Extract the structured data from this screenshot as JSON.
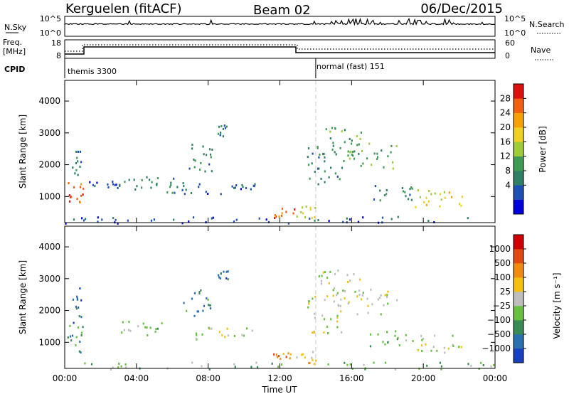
{
  "header": {
    "title": "Kerguelen (fitACF)",
    "beam": "Beam 02",
    "date": "06/Dec/2015"
  },
  "top_panels": {
    "nsky_label": "N.Sky",
    "nsky_ticks": [
      "10^5",
      "10^0"
    ],
    "nsearch_label": "N.Search",
    "nsearch_ticks": [
      "10^5",
      "10^0"
    ],
    "freq_label_line1": "Freq.",
    "freq_label_line2": "[MHz]",
    "freq_ticks": [
      "18",
      "8"
    ],
    "nave_label": "Nave",
    "nave_ticks": [
      "60",
      "0"
    ],
    "cpid_label": "CPID",
    "cpid_segments": [
      {
        "label": "themis 3300",
        "start_hour": 0
      },
      {
        "label": "normal (fast) 151",
        "start_hour": 14
      }
    ]
  },
  "x_axis": {
    "label": "Time UT",
    "ticks": [
      "00:00",
      "04:00",
      "08:00",
      "12:00",
      "16:00",
      "20:00",
      "00:00"
    ]
  },
  "y_axis": {
    "label": "Slant Range [km]",
    "ticks": [
      "1000",
      "2000",
      "3000",
      "4000"
    ]
  },
  "power_colorbar": {
    "label": "Power [dB]",
    "ticks": [
      "28",
      "24",
      "20",
      "16",
      "12",
      "8",
      "4"
    ],
    "colors": [
      "#0000dd",
      "#1e4fb5",
      "#2f7f66",
      "#3f9a55",
      "#9ccc3a",
      "#f0d020",
      "#f5a000",
      "#f06010",
      "#dd1010"
    ]
  },
  "velocity_colorbar": {
    "label": "Velocity [m s⁻¹]",
    "ticks": [
      "1000",
      "500",
      "100",
      "25",
      "−25",
      "−100",
      "−500",
      "−1000"
    ],
    "colors": [
      "#1840c0",
      "#2a70b0",
      "#3a8a55",
      "#68c040",
      "#bebebe",
      "#f5c010",
      "#f08a10",
      "#e04a10",
      "#d00000"
    ]
  },
  "chart_data": {
    "type": "heatmap",
    "title": "Kerguelen (fitACF)",
    "subtitle": "Beam 02",
    "xlabel": "Time UT",
    "ylabel": "Slant Range [km]",
    "xlim": [
      0,
      24
    ],
    "ylim": [
      180,
      4650
    ],
    "time_switch_hour": 14,
    "power_blobs": [
      {
        "t0": 0.0,
        "t1": 1.0,
        "r0": 700,
        "r1": 1550,
        "level": 7
      },
      {
        "t0": 0.4,
        "t1": 0.9,
        "r0": 1600,
        "r1": 2800,
        "level": 2
      },
      {
        "t0": 1.2,
        "t1": 3.0,
        "r0": 1250,
        "r1": 1500,
        "level": 1
      },
      {
        "t0": 3.0,
        "t1": 5.6,
        "r0": 1250,
        "r1": 1700,
        "level": 2
      },
      {
        "t0": 5.5,
        "t1": 7.0,
        "r0": 1100,
        "r1": 1600,
        "level": 2
      },
      {
        "t0": 6.6,
        "t1": 8.2,
        "r0": 1800,
        "r1": 2700,
        "level": 2
      },
      {
        "t0": 8.5,
        "t1": 9.1,
        "r0": 2900,
        "r1": 3300,
        "level": 2
      },
      {
        "t0": 7.0,
        "t1": 10.6,
        "r0": 1100,
        "r1": 1500,
        "level": 1
      },
      {
        "t0": 11.6,
        "t1": 12.8,
        "r0": 350,
        "r1": 700,
        "level": 7
      },
      {
        "t0": 12.9,
        "t1": 14.0,
        "r0": 350,
        "r1": 750,
        "level": 5
      },
      {
        "t0": 13.5,
        "t1": 15.5,
        "r0": 1300,
        "r1": 2600,
        "level": 2
      },
      {
        "t0": 14.0,
        "t1": 16.5,
        "r0": 2200,
        "r1": 3300,
        "level": 3
      },
      {
        "t0": 15.5,
        "t1": 18.5,
        "r0": 1900,
        "r1": 2700,
        "level": 3
      },
      {
        "t0": 17.0,
        "t1": 19.5,
        "r0": 900,
        "r1": 1400,
        "level": 2
      },
      {
        "t0": 19.5,
        "t1": 22.3,
        "r0": 700,
        "r1": 1300,
        "level": 5
      },
      {
        "t0": 0.0,
        "t1": 24.0,
        "r0": 180,
        "r1": 400,
        "level": 1
      }
    ],
    "velocity_blobs": [
      {
        "t0": 0.0,
        "t1": 1.0,
        "r0": 700,
        "r1": 1550,
        "level": 2
      },
      {
        "t0": 0.4,
        "t1": 0.9,
        "r0": 1600,
        "r1": 2800,
        "level": 1
      },
      {
        "t0": 3.0,
        "t1": 5.6,
        "r0": 1250,
        "r1": 1700,
        "level": 3
      },
      {
        "t0": 6.6,
        "t1": 8.2,
        "r0": 1800,
        "r1": 2700,
        "level": 2
      },
      {
        "t0": 8.5,
        "t1": 9.1,
        "r0": 2900,
        "r1": 3300,
        "level": 1
      },
      {
        "t0": 7.0,
        "t1": 10.6,
        "r0": 1100,
        "r1": 1500,
        "level": 4
      },
      {
        "t0": 11.6,
        "t1": 12.8,
        "r0": 500,
        "r1": 750,
        "level": 6
      },
      {
        "t0": 12.9,
        "t1": 14.0,
        "r0": 350,
        "r1": 750,
        "level": 5
      },
      {
        "t0": 13.5,
        "t1": 15.5,
        "r0": 1300,
        "r1": 2600,
        "level": 4
      },
      {
        "t0": 14.0,
        "t1": 16.5,
        "r0": 2200,
        "r1": 3300,
        "level": 4
      },
      {
        "t0": 15.5,
        "t1": 18.5,
        "r0": 1900,
        "r1": 2700,
        "level": 4
      },
      {
        "t0": 17.0,
        "t1": 19.5,
        "r0": 900,
        "r1": 1400,
        "level": 3
      },
      {
        "t0": 19.5,
        "t1": 22.3,
        "r0": 700,
        "r1": 1300,
        "level": 4
      },
      {
        "t0": 0.0,
        "t1": 24.0,
        "r0": 180,
        "r1": 400,
        "level": 3
      }
    ]
  }
}
